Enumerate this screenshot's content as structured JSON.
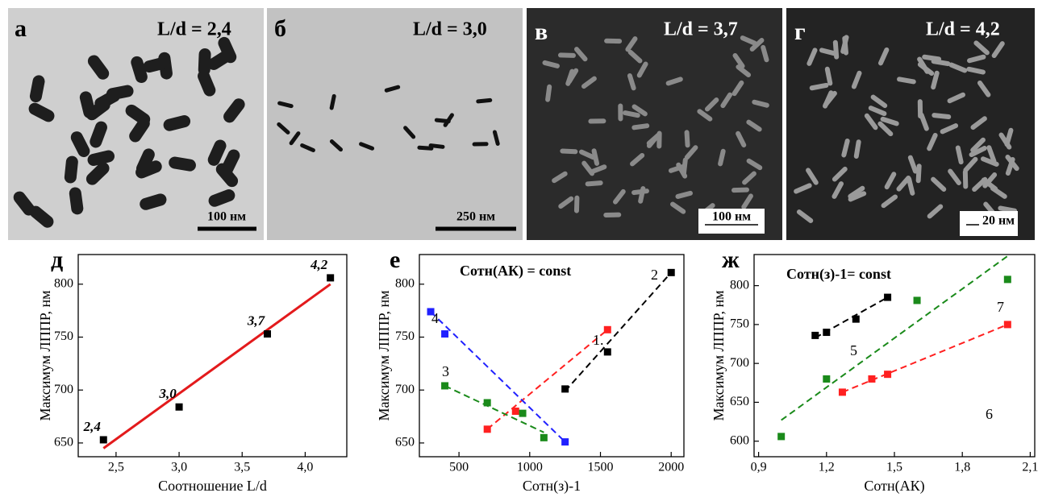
{
  "panels": [
    {
      "letter": "а",
      "ratio": "L/d = 2,4",
      "scale": "100 нм"
    },
    {
      "letter": "б",
      "ratio": "L/d = 3,0",
      "scale": "250 нм"
    },
    {
      "letter": "в",
      "ratio": "L/d = 3,7",
      "scale": "100 нм"
    },
    {
      "letter": "г",
      "ratio": "L/d = 4,2",
      "scale": "20 нм"
    }
  ],
  "chart_data": [
    {
      "type": "scatter",
      "letter": "д",
      "xlabel": "Соотношение L/d",
      "ylabel": "Максимум ЛППР, нм",
      "xlim": [
        2.2,
        4.33
      ],
      "ylim": [
        637,
        828
      ],
      "xticks": [
        {
          "value": 2.5,
          "label": "2,5"
        },
        {
          "value": 3.0,
          "label": "3,0"
        },
        {
          "value": 3.5,
          "label": "3,5"
        },
        {
          "value": 4.0,
          "label": "4,0"
        }
      ],
      "yticks": [
        650,
        700,
        750,
        800
      ],
      "series": [
        {
          "color": "#000000",
          "x": [
            2.4,
            3.0,
            3.7,
            4.2
          ],
          "values": [
            653,
            684,
            753,
            806
          ],
          "value_labels": [
            "2,4",
            "3,0",
            "3,7",
            "4,2"
          ]
        }
      ],
      "fits": [
        {
          "color": "#e31a1c",
          "dashed": false,
          "x": [
            2.4,
            4.2
          ],
          "y": [
            645,
            800
          ]
        }
      ]
    },
    {
      "type": "scatter",
      "letter": "е",
      "title": "Cотн(АК) = const",
      "xlabel": "Cотн(з)-1",
      "ylabel": "Максимум ЛППР, нм",
      "xlim": [
        220,
        2090
      ],
      "ylim": [
        637,
        828
      ],
      "xticks": [
        500,
        1000,
        1500,
        2000
      ],
      "yticks": [
        650,
        700,
        750,
        800
      ],
      "series": [
        {
          "name": "1.",
          "color": "#ff2020",
          "x": [
            700,
            900,
            1550
          ],
          "values": [
            663,
            680,
            757
          ]
        },
        {
          "name": "2",
          "color": "#000000",
          "x": [
            1250,
            1550,
            2000
          ],
          "values": [
            701,
            736,
            811
          ]
        },
        {
          "name": "3",
          "color": "#1a8a1a",
          "x": [
            400,
            700,
            950,
            1100
          ],
          "values": [
            704,
            688,
            678,
            655
          ]
        },
        {
          "name": "4",
          "color": "#2020ff",
          "x": [
            300,
            400,
            1250
          ],
          "values": [
            774,
            753,
            651
          ]
        }
      ],
      "fits": [
        {
          "color": "#ff2020",
          "dashed": true,
          "x": [
            700,
            1550
          ],
          "y": [
            663,
            757
          ]
        },
        {
          "color": "#000000",
          "dashed": true,
          "x": [
            1250,
            2000
          ],
          "y": [
            699,
            811
          ]
        },
        {
          "color": "#1a8a1a",
          "dashed": true,
          "x": [
            400,
            1100
          ],
          "y": [
            704,
            660
          ]
        },
        {
          "color": "#2020ff",
          "dashed": true,
          "x": [
            300,
            1250
          ],
          "y": [
            774,
            651
          ]
        }
      ]
    },
    {
      "type": "scatter",
      "letter": "ж",
      "title": "Cотн(з)-1= const",
      "xlabel": "Cотн(АК)",
      "ylabel": "Максимум ЛППР, нм",
      "xlim": [
        0.88,
        2.12
      ],
      "ylim": [
        580,
        840
      ],
      "xticks": [
        {
          "value": 0.9,
          "label": "0,9"
        },
        {
          "value": 1.2,
          "label": "1,2"
        },
        {
          "value": 1.5,
          "label": "1,5"
        },
        {
          "value": 1.8,
          "label": "1,8"
        },
        {
          "value": 2.1,
          "label": "2,1"
        }
      ],
      "yticks": [
        600,
        650,
        700,
        750,
        800
      ],
      "series": [
        {
          "name": "5",
          "color": "#000000",
          "x": [
            1.15,
            1.2,
            1.33,
            1.47
          ],
          "values": [
            736,
            740,
            757,
            785
          ]
        },
        {
          "name": "6",
          "color": "#ff2020",
          "x": [
            1.27,
            1.4,
            1.47,
            2.0
          ],
          "values": [
            663,
            680,
            686,
            750
          ]
        },
        {
          "name": "7",
          "color": "#1a8a1a",
          "x": [
            1.0,
            1.2,
            1.6,
            2.0
          ],
          "values": [
            606,
            680,
            781,
            808
          ]
        }
      ],
      "fits": [
        {
          "color": "#000000",
          "dashed": true,
          "x": [
            1.15,
            1.47
          ],
          "y": [
            733,
            785
          ]
        },
        {
          "color": "#ff2020",
          "dashed": true,
          "x": [
            1.27,
            2.0
          ],
          "y": [
            663,
            750
          ]
        },
        {
          "color": "#1a8a1a",
          "dashed": true,
          "x": [
            1.0,
            2.0
          ],
          "y": [
            627,
            838
          ]
        }
      ]
    }
  ]
}
